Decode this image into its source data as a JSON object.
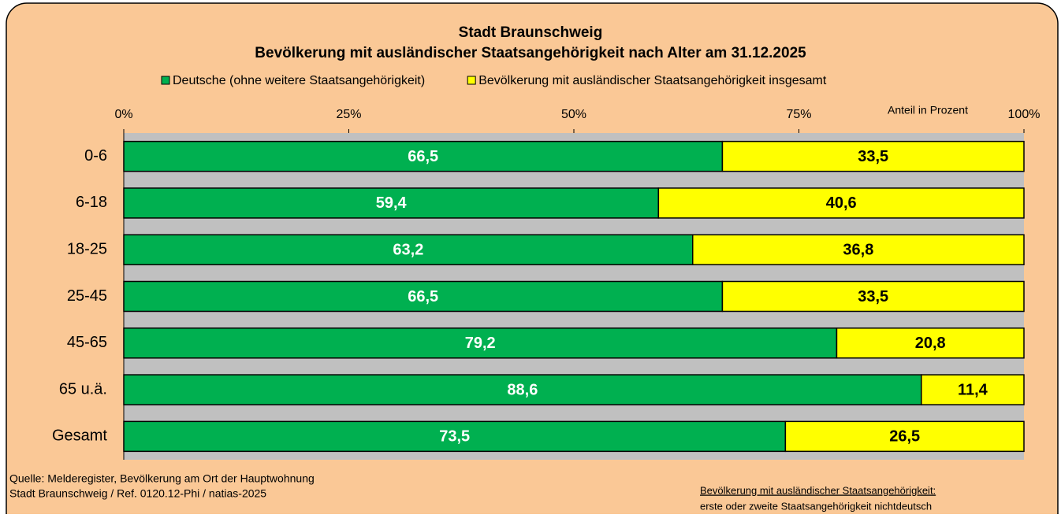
{
  "chart_data": {
    "type": "stacked-barh",
    "title": "Stadt Braunschweig",
    "subtitle": "Bevölkerung mit ausländischer Staatsangehörigkeit nach Alter am 31.12.2025",
    "x_label": "Anteil in Prozent",
    "categories": [
      "0-6",
      "6-18",
      "18-25",
      "25-45",
      "45-65",
      "65 u.ä.",
      "Gesamt"
    ],
    "series": [
      {
        "name": "Deutsche (ohne weitere Staatsangehörigkeit)",
        "color": "#00b050",
        "label_color": "#ffffff",
        "values": [
          66.5,
          59.4,
          63.2,
          66.5,
          79.2,
          88.6,
          73.5
        ],
        "value_labels": [
          "66,5",
          "59,4",
          "63,2",
          "66,5",
          "79,2",
          "88,6",
          "73,5"
        ]
      },
      {
        "name": "Bevölkerung mit ausländischer Staatsangehörigkeit insgesamt",
        "color": "#ffff00",
        "label_color": "#000000",
        "values": [
          33.5,
          40.6,
          36.8,
          33.5,
          20.8,
          11.4,
          26.5
        ],
        "value_labels": [
          "33,5",
          "40,6",
          "36,8",
          "33,5",
          "20,8",
          "11,4",
          "26,5"
        ]
      }
    ],
    "xlim": [
      0,
      100
    ],
    "xticks": [
      {
        "value": 0,
        "label": "0%"
      },
      {
        "value": 25,
        "label": "25%"
      },
      {
        "value": 50,
        "label": "50%"
      },
      {
        "value": 75,
        "label": "75%"
      },
      {
        "value": 100,
        "label": "100%"
      }
    ],
    "legend": "top",
    "source": [
      "Quelle: Melderegister, Bevölkerung am Ort der Hauptwohnung",
      "Stadt Braunschweig / Ref. 0120.12-Phi / natias-2025"
    ],
    "footnote": {
      "title": "Bevölkerung mit ausländischer Staatsangehörigkeit:",
      "text": "erste oder zweite Staatsangehörigkeit nichtdeutsch"
    }
  }
}
